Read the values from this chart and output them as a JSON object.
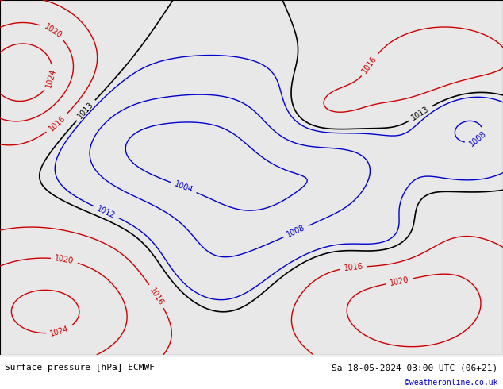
{
  "title_left": "Surface pressure [hPa] ECMWF",
  "title_right": "Sa 18-05-2024 03:00 UTC (06+21)",
  "credit": "©weatheronline.co.uk",
  "land_color": "#c8e6a0",
  "ocean_color": "#e8e8e8",
  "border_color": "#888888",
  "fig_width": 6.34,
  "fig_height": 4.9,
  "dpi": 100,
  "lon_min": -30,
  "lon_max": 80,
  "lat_min": -40,
  "lat_max": 42,
  "font_size_labels": 7,
  "font_size_bottom": 8,
  "font_size_credit": 7,
  "text_color_left": "#000000",
  "text_color_right": "#000000",
  "text_color_credit": "#0000cc",
  "black_contour_color": "#000000",
  "blue_contour_color": "#0000cc",
  "red_contour_color": "#cc0000",
  "contour_lw": 1.0,
  "label_fontsize": 7
}
